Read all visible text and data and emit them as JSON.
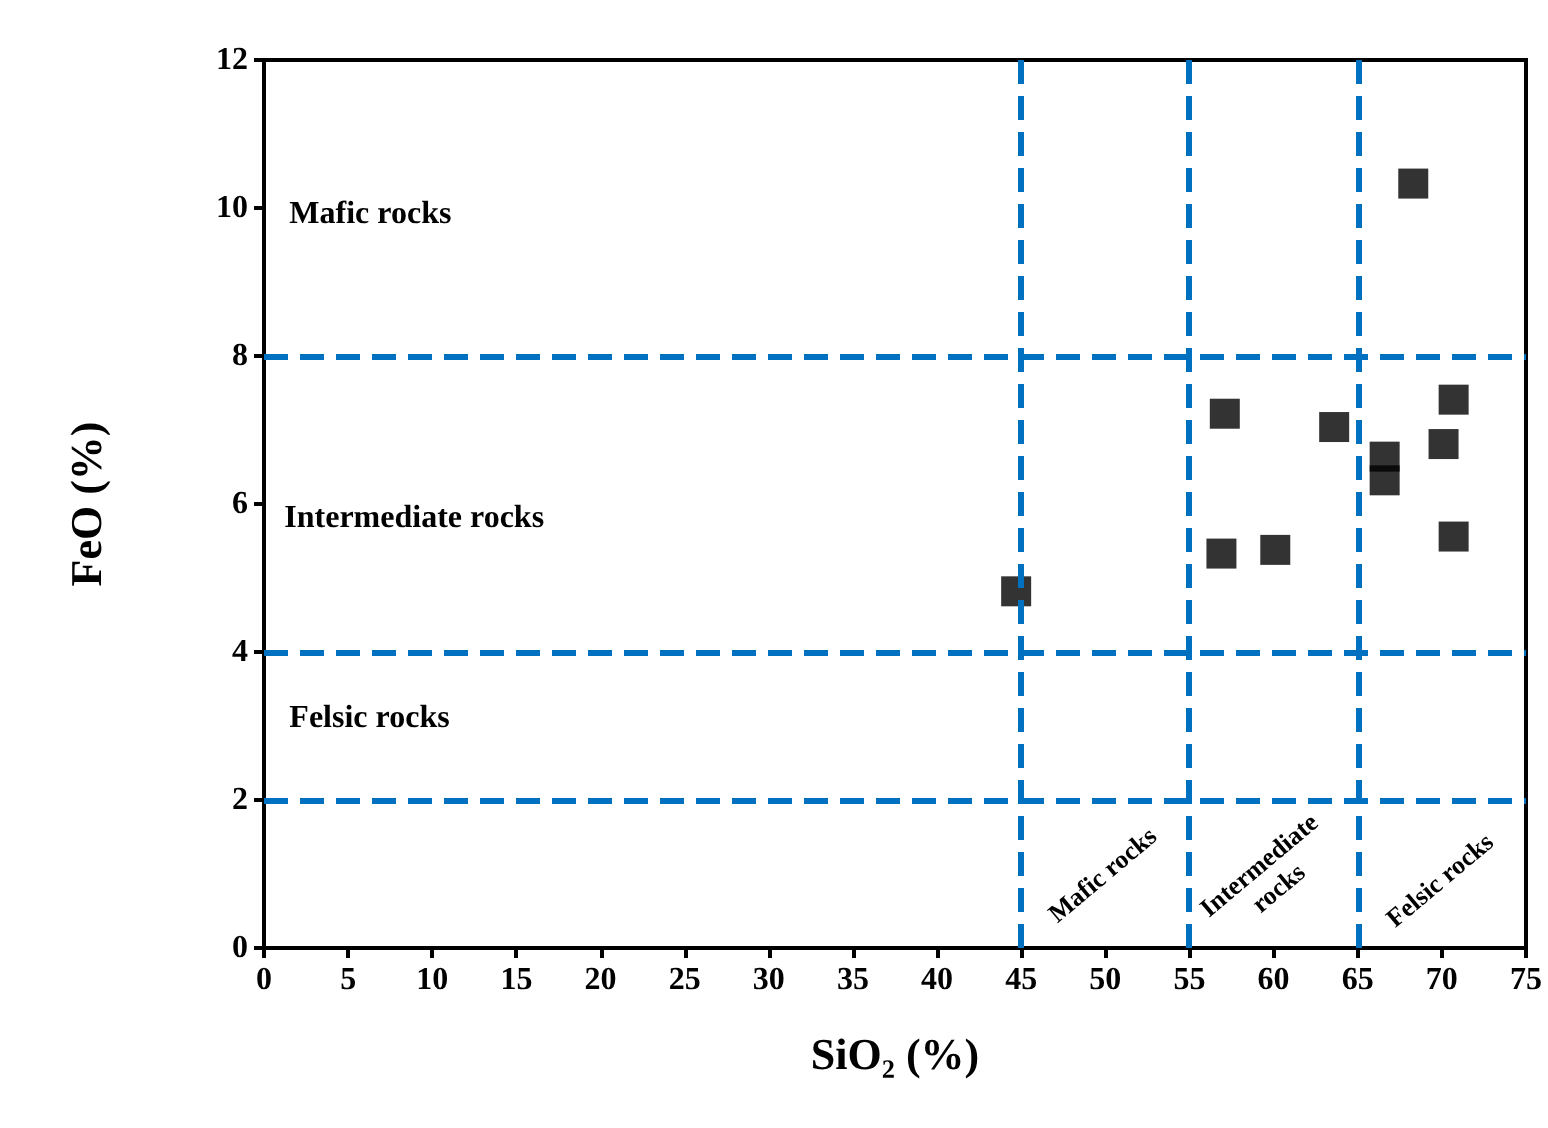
{
  "chart_data": {
    "type": "scatter",
    "xlabel": "SiO₂ (%)",
    "ylabel": "FeO (%)",
    "x": [
      68.3,
      57.1,
      63.6,
      70.7,
      70.1,
      66.6,
      66.6,
      70.7,
      56.9,
      60.1,
      44.7
    ],
    "values": [
      10.33,
      7.22,
      7.04,
      7.41,
      6.81,
      6.64,
      6.32,
      5.56,
      5.33,
      5.38,
      4.82
    ],
    "color": "#000000",
    "marker": "square",
    "grid": false,
    "xlim": [
      0,
      75
    ],
    "xticks": [
      0,
      5,
      10,
      15,
      20,
      25,
      30,
      35,
      40,
      45,
      50,
      55,
      60,
      65,
      70,
      75
    ],
    "ylim": [
      0,
      12
    ],
    "yticks": [
      0,
      2,
      4,
      6,
      8,
      10,
      12
    ],
    "ref_lines": [
      {
        "axis": "y",
        "value": 2,
        "color": "#0070c0",
        "line_style": "dashed"
      },
      {
        "axis": "y",
        "value": 4,
        "color": "#0070c0",
        "line_style": "dashed"
      },
      {
        "axis": "y",
        "value": 8,
        "color": "#0070c0",
        "line_style": "dashed"
      },
      {
        "axis": "x",
        "value": 45,
        "color": "#0070c0",
        "line_style": "dashed"
      },
      {
        "axis": "x",
        "value": 55,
        "color": "#0070c0",
        "line_style": "dashed"
      },
      {
        "axis": "x",
        "value": 65,
        "color": "#0070c0",
        "line_style": "dashed"
      }
    ],
    "annotations": [
      "Mafic rocks",
      "Intermediate rocks",
      "Felsic rocks",
      "Mafic rocks",
      "Intermediate\nrocks",
      "Felsic rocks"
    ]
  }
}
